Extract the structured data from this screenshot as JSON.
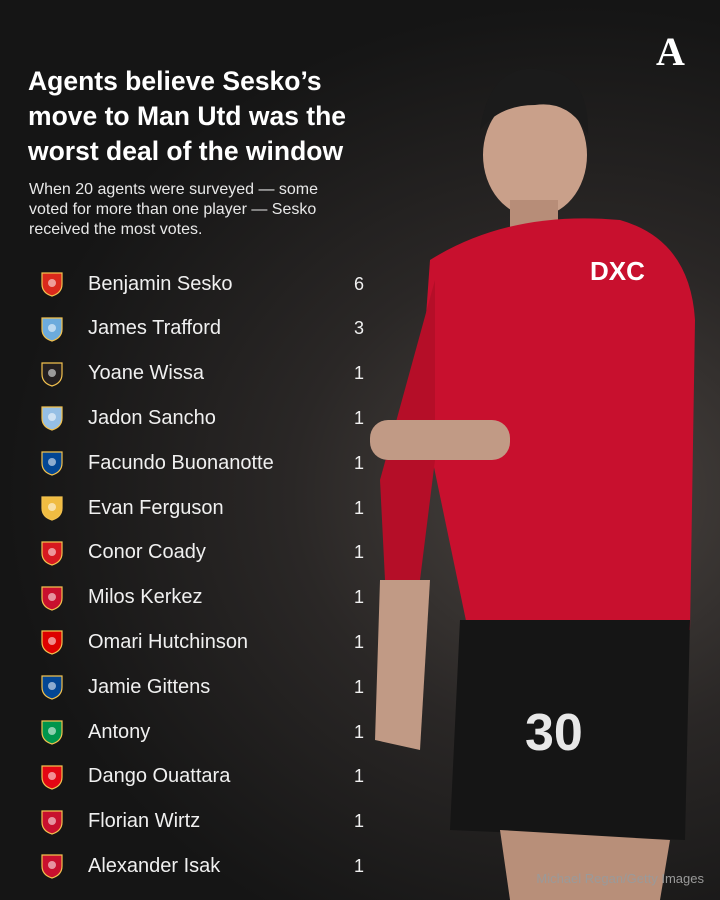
{
  "brand": {
    "logo": "A"
  },
  "title": "Agents believe Sesko’s move to Man Utd was the worst deal of the window",
  "subtitle": "When 20 agents were surveyed — some voted for more than one player — Sesko received the most votes.",
  "credit": "Michael Regan/Getty Images",
  "chart_data": {
    "type": "table",
    "rows": [
      {
        "player": "Benjamin Sesko",
        "votes": 6,
        "club_icon": "man-utd-crest",
        "color": "#da291c"
      },
      {
        "player": "James Trafford",
        "votes": 3,
        "club_icon": "man-city-crest",
        "color": "#6cabdd"
      },
      {
        "player": "Yoane Wissa",
        "votes": 1,
        "club_icon": "newcastle-crest",
        "color": "#241f20"
      },
      {
        "player": "Jadon Sancho",
        "votes": 1,
        "club_icon": "aston-villa-crest",
        "color": "#95bfe5"
      },
      {
        "player": "Facundo Buonanotte",
        "votes": 1,
        "club_icon": "chelsea-crest",
        "color": "#034694"
      },
      {
        "player": "Evan Ferguson",
        "votes": 1,
        "club_icon": "roma-crest",
        "color": "#f0bc42"
      },
      {
        "player": "Conor Coady",
        "votes": 1,
        "club_icon": "wrexham-crest",
        "color": "#d71920"
      },
      {
        "player": "Milos Kerkez",
        "votes": 1,
        "club_icon": "liverpool-crest",
        "color": "#c8102e"
      },
      {
        "player": "Omari Hutchinson",
        "votes": 1,
        "club_icon": "nottingham-forest-crest",
        "color": "#dd0000"
      },
      {
        "player": "Jamie Gittens",
        "votes": 1,
        "club_icon": "chelsea-crest",
        "color": "#034694"
      },
      {
        "player": "Antony",
        "votes": 1,
        "club_icon": "real-betis-crest",
        "color": "#00954c"
      },
      {
        "player": "Dango Ouattara",
        "votes": 1,
        "club_icon": "brentford-crest",
        "color": "#e30613"
      },
      {
        "player": "Florian Wirtz",
        "votes": 1,
        "club_icon": "liverpool-crest",
        "color": "#c8102e"
      },
      {
        "player": "Alexander Isak",
        "votes": 1,
        "club_icon": "liverpool-crest",
        "color": "#c8102e"
      }
    ]
  }
}
